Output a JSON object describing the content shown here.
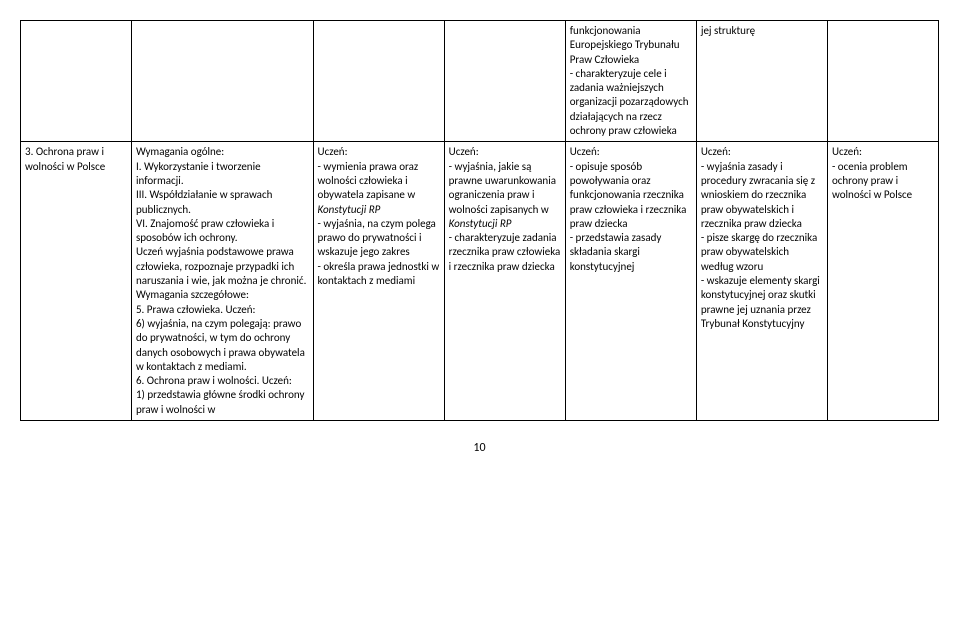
{
  "row1": {
    "c1": "",
    "c2": "",
    "c3": "",
    "c4": "",
    "c5": "funkcjonowania Europejskiego Trybunału Praw Człowieka\n- charakteryzuje cele i zadania ważniejszych organizacji pozarządowych działających na rzecz ochrony praw człowieka",
    "c6": "jej strukturę",
    "c7": ""
  },
  "row2": {
    "c1": "3. Ochrona praw i wolności w Polsce",
    "c2_a": "Wymagania ogólne:\nI. Wykorzystanie i tworzenie informacji.\nIII. Współdziałanie w sprawach publicznych.\nVI. Znajomość praw człowieka i sposobów ich ochrony.\nUczeń wyjaśnia podstawowe prawa człowieka, rozpoznaje przypadki ich naruszania i wie, jak można je chronić.\nWymagania szczegółowe:\n5. Prawa człowieka. Uczeń:\n6) wyjaśnia, na czym polegają: prawo do prywatności, w tym do ochrony danych osobowych i prawa obywatela w kontaktach z mediami.\n6. Ochrona praw i wolności. Uczeń:\n1) przedstawia główne środki ochrony praw i wolności w",
    "c3_a": "Uczeń:\n- wymienia prawa oraz wolności człowieka i obywatela zapisane w ",
    "c3_i": "Konstytucji RP",
    "c3_b": "\n- wyjaśnia, na czym polega prawo do prywatności i wskazuje jego zakres\n- określa prawa jednostki w kontaktach z mediami",
    "c4_a": "Uczeń:\n- wyjaśnia, jakie są prawne uwarunkowania ograniczenia praw i wolności zapisanych w ",
    "c4_i": "Konstytucji RP",
    "c4_b": "\n- charakteryzuje zadania rzecznika praw człowieka i rzecznika praw dziecka",
    "c5": "Uczeń:\n- opisuje sposób powoływania oraz funkcjonowania rzecznika praw człowieka i rzecznika praw dziecka\n- przedstawia zasady składania skargi konstytucyjnej",
    "c6": "Uczeń:\n- wyjaśnia zasady i procedury zwracania się z wnioskiem do rzecznika praw obywatelskich i rzecznika praw dziecka\n- pisze skargę do rzecznika praw obywatelskich według wzoru\n- wskazuje elementy skargi konstytucyjnej oraz skutki prawne jej uznania przez Trybunał Konstytucyjny",
    "c7": "Uczeń:\n- ocenia problem ochrony praw i wolności w Polsce"
  },
  "page_number": "10"
}
